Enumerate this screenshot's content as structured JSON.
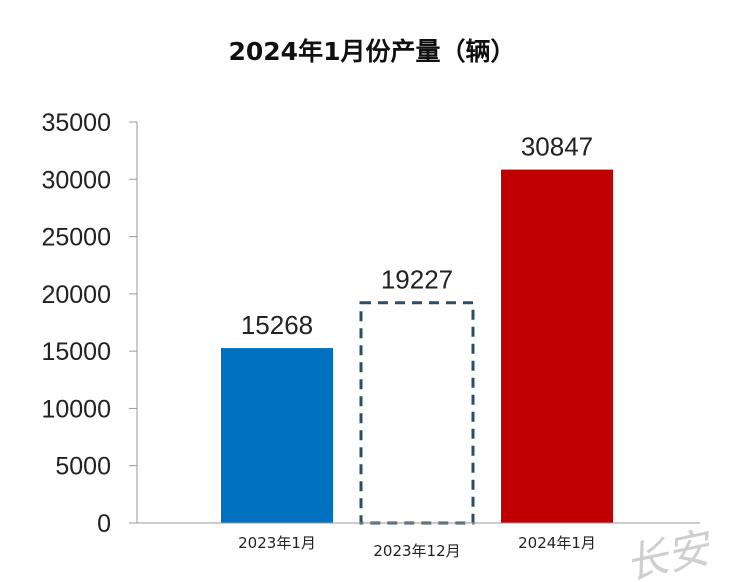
{
  "chart_data": {
    "type": "bar",
    "title": "2024年1月份产量（辆）",
    "xlabel": "",
    "ylabel": "",
    "categories": [
      "2023年1月",
      "2023年12月",
      "2024年1月"
    ],
    "values": [
      15268,
      19227,
      30847
    ],
    "data_labels": [
      "15268",
      "19227",
      "30847"
    ],
    "ylim": [
      0,
      35000
    ],
    "yticks": [
      "0",
      "5000",
      "10000",
      "15000",
      "20000",
      "25000",
      "30000",
      "35000"
    ],
    "grid": false,
    "legend": "none",
    "bar_styles": [
      {
        "fill": "#0070c0",
        "stroke": "none",
        "dashed": false
      },
      {
        "fill": "none",
        "stroke": "#2f4d6b",
        "dashed": true
      },
      {
        "fill": "#c00000",
        "stroke": "none",
        "dashed": false
      }
    ]
  },
  "watermark": "长安"
}
